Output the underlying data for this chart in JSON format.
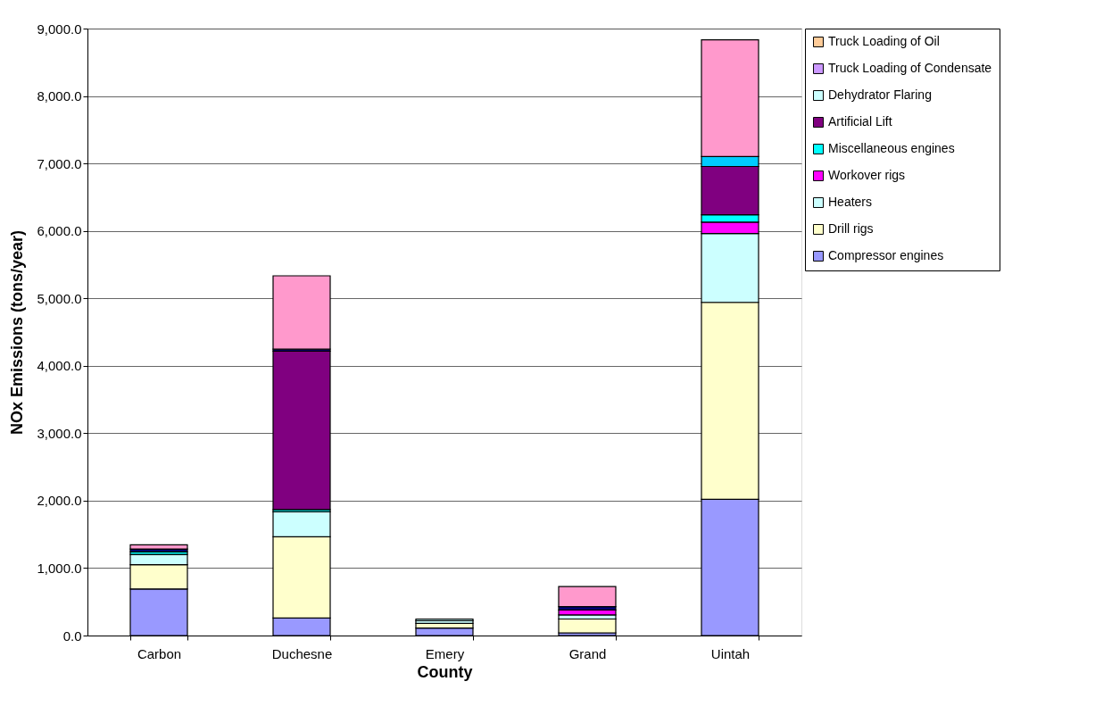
{
  "chart_data": {
    "type": "bar",
    "stacked": true,
    "xlabel": "County",
    "ylabel": "NOx Emissions (tons/year)",
    "categories": [
      "Carbon",
      "Duchesne",
      "Emery",
      "Grand",
      "Uintah"
    ],
    "series": [
      {
        "name": "Compressor engines",
        "color": "#9999ff",
        "values": [
          690,
          260,
          110,
          40,
          2020
        ]
      },
      {
        "name": "Drill rigs",
        "color": "#ffffcc",
        "values": [
          360,
          1205,
          70,
          205,
          2920
        ]
      },
      {
        "name": "Heaters",
        "color": "#ccffff",
        "values": [
          153,
          371,
          40,
          60,
          1020
        ]
      },
      {
        "name": "Workover rigs",
        "color": "#ff00ff",
        "values": [
          null,
          null,
          null,
          74,
          170
        ]
      },
      {
        "name": "Miscellaneous engines",
        "color": "#00ffff",
        "values": [
          40,
          33,
          null,
          null,
          110
        ]
      },
      {
        "name": "Artificial Lift",
        "color": "#800080",
        "values": [
          null,
          2347,
          null,
          null,
          715
        ]
      },
      {
        "name": "Dehydrator Flaring",
        "color": "#ccffff",
        "values": [
          null,
          null,
          25,
          null,
          null
        ]
      },
      {
        "name": "Truck Loading of Condensate",
        "color": "#cc99ff",
        "values": [
          null,
          null,
          null,
          null,
          null
        ]
      },
      {
        "name": "Truck Loading of Oil",
        "color": "#ffcc99",
        "values": [
          null,
          null,
          null,
          null,
          null
        ]
      },
      {
        "color": "#000080",
        "values": [
          40,
          30,
          null,
          50,
          null
        ]
      },
      {
        "color": "#00ccff",
        "values": [
          null,
          null,
          null,
          null,
          147
        ]
      },
      {
        "color": "#ff99cc",
        "values": [
          62,
          1088,
          null,
          297,
          1730
        ]
      }
    ],
    "ylim": [
      0,
      9000
    ],
    "yticks": [
      {
        "value": 0,
        "label": "0.0"
      },
      {
        "value": 1000,
        "label": "1,000.0"
      },
      {
        "value": 2000,
        "label": "2,000.0"
      },
      {
        "value": 3000,
        "label": "3,000.0"
      },
      {
        "value": 4000,
        "label": "4,000.0"
      },
      {
        "value": 5000,
        "label": "5,000.0"
      },
      {
        "value": 6000,
        "label": "6,000.0"
      },
      {
        "value": 7000,
        "label": "7,000.0"
      },
      {
        "value": 8000,
        "label": "8,000.0"
      },
      {
        "value": 9000,
        "label": "9,000.0"
      }
    ],
    "grid": "y",
    "legend": "right"
  }
}
